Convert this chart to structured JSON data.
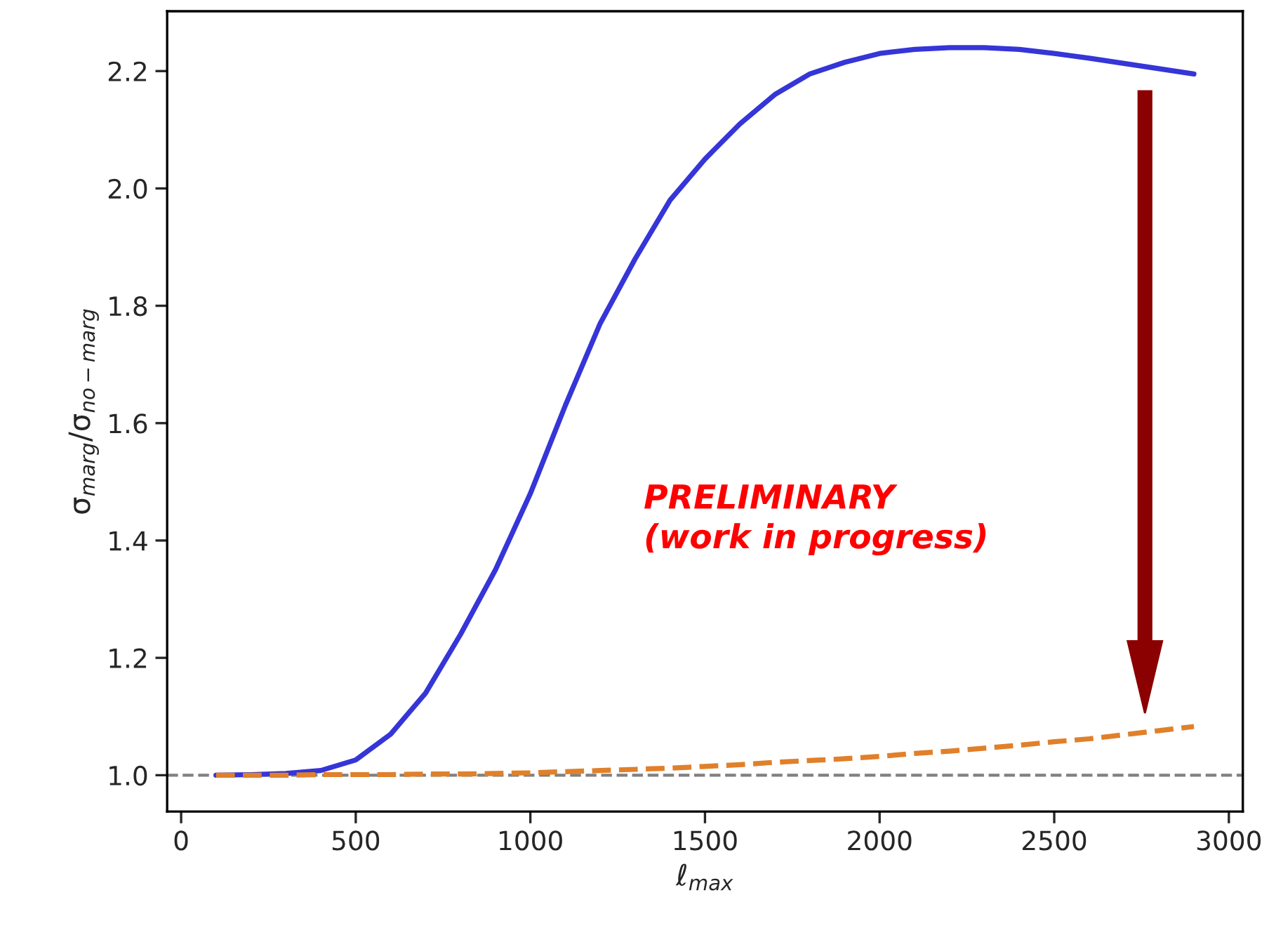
{
  "chart_data": {
    "type": "line",
    "xlabel": "ℓ$_{max}$",
    "ylabel": "σ$_{marg}$/σ$_{no−marg}$",
    "x": [
      100,
      200,
      300,
      400,
      500,
      600,
      700,
      800,
      900,
      1000,
      1100,
      1200,
      1300,
      1400,
      1500,
      1600,
      1700,
      1800,
      1900,
      2000,
      2100,
      2200,
      2300,
      2400,
      2500,
      2600,
      2700,
      2800,
      2900
    ],
    "series": [
      {
        "color": "#3535d8",
        "line_style": "solid",
        "values": [
          1.0,
          1.001,
          1.003,
          1.008,
          1.026,
          1.07,
          1.14,
          1.24,
          1.35,
          1.48,
          1.63,
          1.77,
          1.88,
          1.98,
          2.05,
          2.11,
          2.16,
          2.195,
          2.215,
          2.23,
          2.237,
          2.24,
          2.24,
          2.237,
          2.23,
          2.222,
          2.213,
          2.204,
          2.195
        ]
      },
      {
        "color": "#e0802a",
        "line_style": "dashed",
        "values": [
          1.0,
          1.0,
          1.0,
          1.001,
          1.001,
          1.001,
          1.002,
          1.002,
          1.003,
          1.004,
          1.006,
          1.008,
          1.01,
          1.012,
          1.015,
          1.018,
          1.022,
          1.025,
          1.028,
          1.032,
          1.037,
          1.041,
          1.046,
          1.051,
          1.057,
          1.062,
          1.069,
          1.076,
          1.083
        ]
      }
    ],
    "xlim": [
      -40,
      3040
    ],
    "xticks": [
      0,
      500,
      1000,
      1500,
      2000,
      2500,
      3000
    ],
    "ylim": [
      0.938,
      2.302
    ],
    "yticks": [
      {
        "value": 1.0,
        "label": "1.0"
      },
      {
        "value": 1.2,
        "label": "1.2"
      },
      {
        "value": 1.4,
        "label": "1.4"
      },
      {
        "value": 1.6,
        "label": "1.6"
      },
      {
        "value": 1.8,
        "label": "1.8"
      },
      {
        "value": 2.0,
        "label": "2.0"
      },
      {
        "value": 2.2,
        "label": "2.2"
      }
    ],
    "ref_lines": [
      {
        "axis": "y",
        "value": 1.0,
        "label": null,
        "color": "#808080",
        "line_style": "dashed"
      }
    ],
    "annotations": [
      "PRELIMINARY\n(work in progress)"
    ],
    "grid": false,
    "legend": false
  }
}
